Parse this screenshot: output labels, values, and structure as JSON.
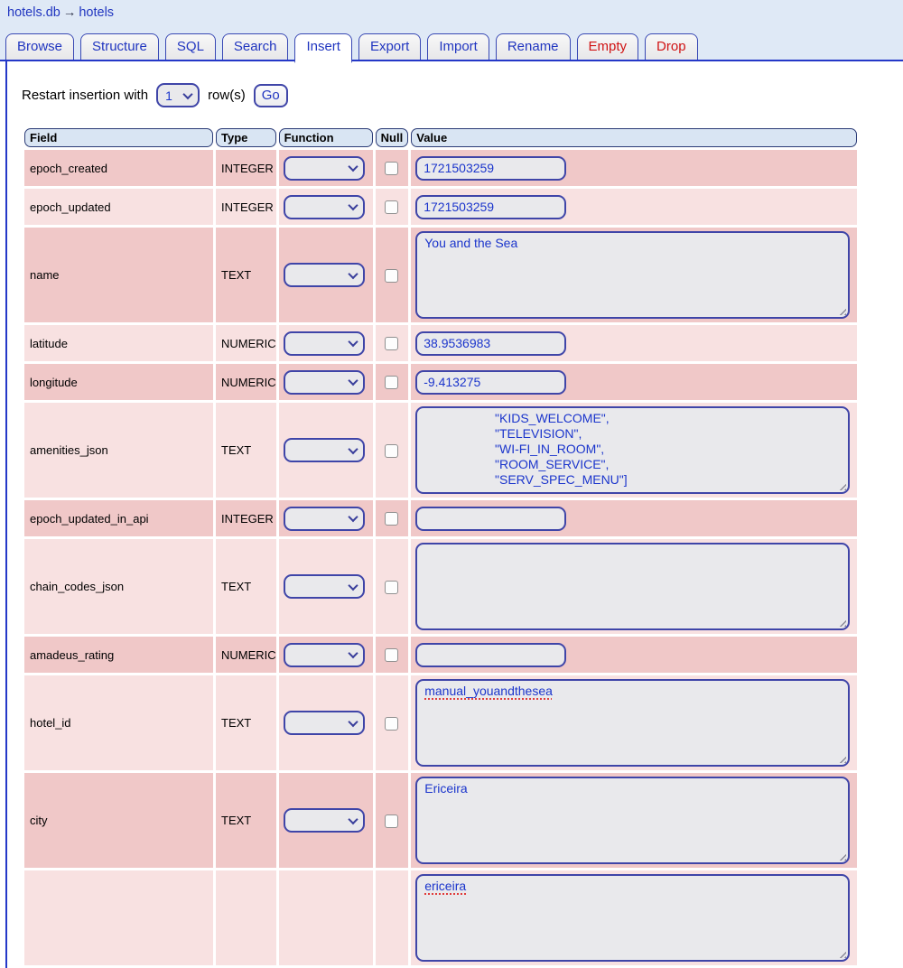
{
  "breadcrumb": {
    "db": "hotels.db",
    "arrow": "→",
    "table": "hotels"
  },
  "tabs": [
    {
      "label": "Browse"
    },
    {
      "label": "Structure"
    },
    {
      "label": "SQL"
    },
    {
      "label": "Search"
    },
    {
      "label": "Insert",
      "state": "active"
    },
    {
      "label": "Export"
    },
    {
      "label": "Import"
    },
    {
      "label": "Rename"
    },
    {
      "label": "Empty",
      "variant": "danger"
    },
    {
      "label": "Drop",
      "variant": "danger"
    }
  ],
  "restart": {
    "text_before": "Restart insertion with",
    "rows_value": "1",
    "text_after": "row(s)",
    "go_label": "Go"
  },
  "table": {
    "headers": [
      "Field",
      "Type",
      "Function",
      "Null",
      "Value"
    ],
    "rows": [
      {
        "field": "epoch_created",
        "type": "INTEGER",
        "control": "input",
        "value": "1721503259"
      },
      {
        "field": "epoch_updated",
        "type": "INTEGER",
        "control": "input",
        "value": "1721503259"
      },
      {
        "field": "name",
        "type": "TEXT",
        "control": "textarea",
        "value": "You and the Sea"
      },
      {
        "field": "latitude",
        "type": "NUMERIC",
        "control": "input",
        "value": "38.9536983"
      },
      {
        "field": "longitude",
        "type": "NUMERIC",
        "control": "input",
        "value": "-9.413275"
      },
      {
        "field": "amenities_json",
        "type": "TEXT",
        "control": "textarea",
        "value": "                    \"KIDS_WELCOME\",\n                    \"TELEVISION\",\n                    \"WI-FI_IN_ROOM\",\n                    \"ROOM_SERVICE\",\n                    \"SERV_SPEC_MENU\"]"
      },
      {
        "field": "epoch_updated_in_api",
        "type": "INTEGER",
        "control": "input",
        "value": ""
      },
      {
        "field": "chain_codes_json",
        "type": "TEXT",
        "control": "textarea",
        "value": ""
      },
      {
        "field": "amadeus_rating",
        "type": "NUMERIC",
        "control": "input",
        "value": ""
      },
      {
        "field": "hotel_id",
        "type": "TEXT",
        "control": "textarea",
        "value": "manual_youandthesea",
        "misspelled": true
      },
      {
        "field": "city",
        "type": "TEXT",
        "control": "textarea",
        "value": "Ericeira"
      },
      {
        "field": "",
        "type": "",
        "control": "textarea",
        "value": "ericeira",
        "misspelled": true
      }
    ]
  },
  "colors": {
    "accent_blue": "#2438c8",
    "link_blue": "#2136c0",
    "control_border": "#3f45a8",
    "value_text": "#1b35cc",
    "row_dark": "#f0c8c8",
    "row_light": "#f8e1e1",
    "header_cell_bg": "#d9e5f3",
    "topbar_bg": "#dfe9f6",
    "danger_red": "#d01414",
    "control_bg": "#e9e9ec"
  }
}
